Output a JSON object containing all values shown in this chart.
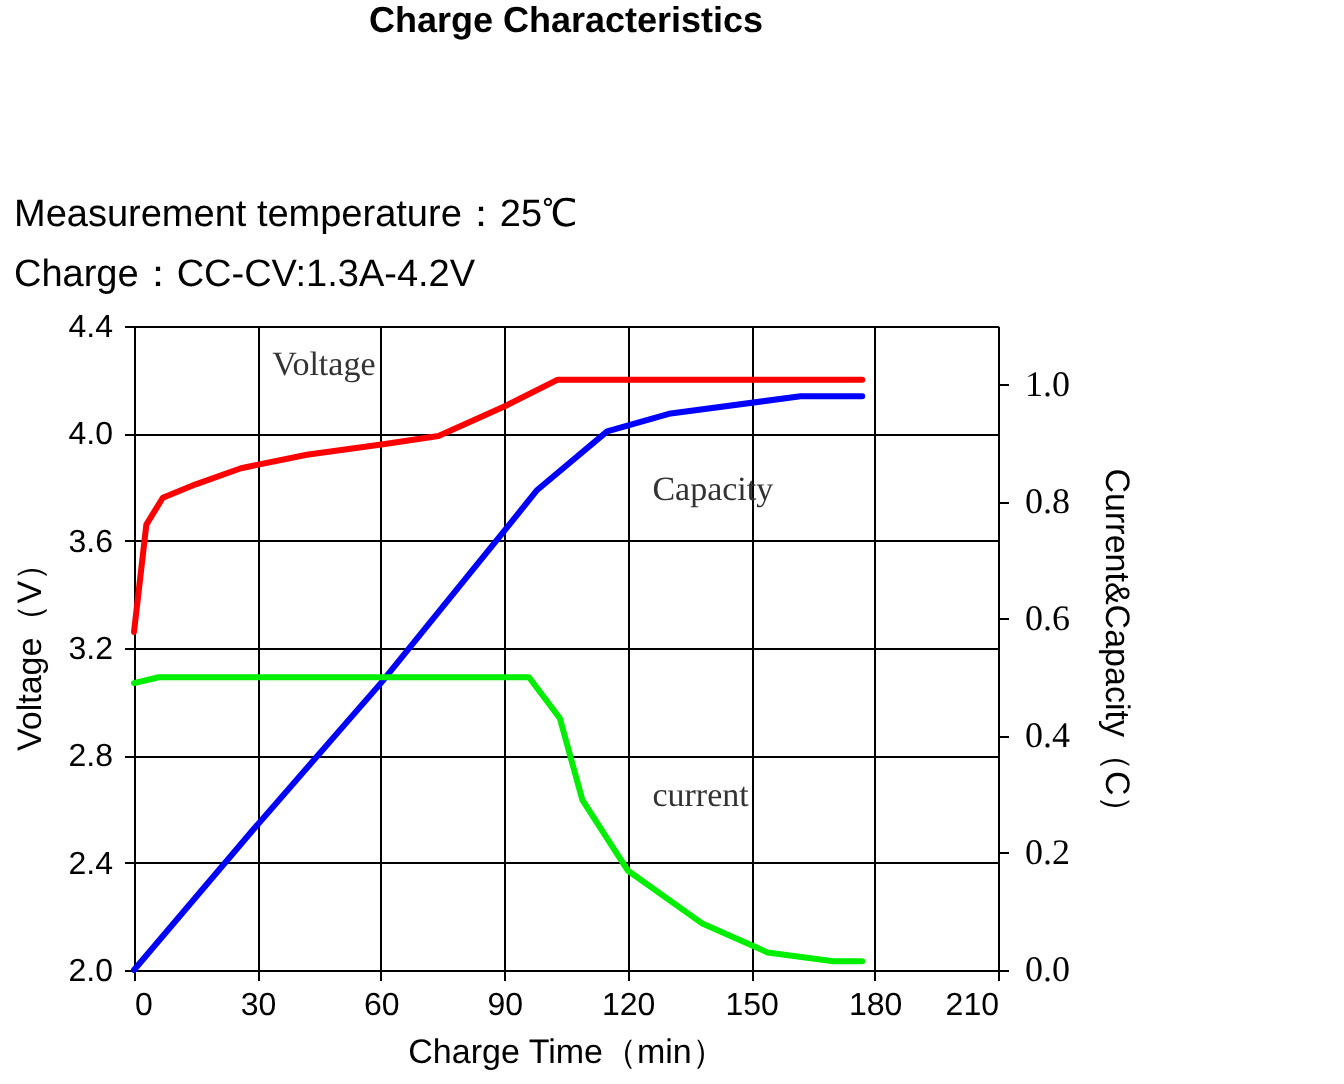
{
  "chart_data": {
    "type": "line",
    "title": "Charge Characteristics",
    "subtitle": "Measurement temperature：25℃\nCharge：CC-CV:1.3A-4.2V",
    "xlabel": "Charge Time（min）",
    "ylabel": "Voltage（V）",
    "y2label": "Current&Capacity（C）",
    "xlim": [
      0,
      210
    ],
    "xticks": [
      0,
      30,
      60,
      90,
      120,
      150,
      180,
      210
    ],
    "ylim": [
      2.0,
      4.4
    ],
    "yticks": [
      {
        "value": 2.0,
        "label": "2.0"
      },
      {
        "value": 2.4,
        "label": "2.4"
      },
      {
        "value": 2.8,
        "label": "2.8"
      },
      {
        "value": 3.2,
        "label": "3.2"
      },
      {
        "value": 3.6,
        "label": "3.6"
      },
      {
        "value": 4.0,
        "label": "4.0"
      },
      {
        "value": 4.4,
        "label": "4.4"
      }
    ],
    "y2lim": [
      0,
      1.1
    ],
    "y2ticks": [
      {
        "value": 0,
        "label": "0.0"
      },
      {
        "value": 0.2,
        "label": "0.2"
      },
      {
        "value": 0.4,
        "label": "0.4"
      },
      {
        "value": 0.6,
        "label": "0.6"
      },
      {
        "value": 0.8,
        "label": "0.8"
      },
      {
        "value": 1.0,
        "label": "1.0"
      }
    ],
    "grid": true,
    "series": [
      {
        "color": "#ff0000",
        "x": [
          0,
          3,
          7,
          15,
          26,
          42,
          61,
          74,
          90,
          103,
          177
        ],
        "values": [
          3.26,
          3.66,
          3.76,
          3.81,
          3.87,
          3.92,
          3.96,
          3.99,
          4.1,
          4.2,
          4.2
        ]
      },
      {
        "color": "#0000ff",
        "axis": "y2",
        "x": [
          0,
          29,
          60,
          90,
          98,
          115,
          130,
          162,
          177
        ],
        "values": [
          0,
          0.24,
          0.49,
          0.75,
          0.82,
          0.92,
          0.95,
          0.98,
          0.98
        ]
      },
      {
        "color": "#00ee00",
        "axis": "y2",
        "x": [
          0,
          6,
          96,
          103.5,
          109,
          120,
          138,
          154,
          170,
          177
        ],
        "values": [
          0.49,
          0.5,
          0.5,
          0.43,
          0.29,
          0.17,
          0.08,
          0.03,
          0.015,
          0.015
        ]
      }
    ],
    "annotations": [
      "Voltage",
      "Capacity",
      "current"
    ]
  }
}
